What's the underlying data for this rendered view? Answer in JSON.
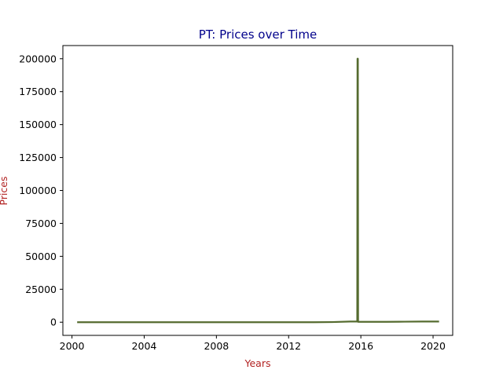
{
  "chart_data": {
    "type": "line",
    "title": "PT: Prices over Time",
    "xlabel": "Years",
    "ylabel": "Prices",
    "title_color": "#00008b",
    "label_color": "#b22222",
    "line_color": "#556b2f",
    "xlim": [
      "1999-07-01",
      "2021-02-01"
    ],
    "ylim": [
      -10000,
      210000
    ],
    "x_ticks": [
      "2000",
      "2004",
      "2008",
      "2012",
      "2016",
      "2020"
    ],
    "y_ticks": [
      "0",
      "25000",
      "50000",
      "75000",
      "100000",
      "125000",
      "150000",
      "175000",
      "200000"
    ],
    "grid": false,
    "series": [
      {
        "x": [
          "2000-04-15",
          "2004-01-01",
          "2008-01-01",
          "2011-06-01",
          "2012-06-01",
          "2013-06-01",
          "2014-06-01",
          "2015-06-01",
          "2015-10-20",
          "2015-10-25",
          "2015-11-02",
          "2015-11-06",
          "2016-06-01",
          "2017-06-01",
          "2018-06-01",
          "2019-06-01",
          "2020-05-01"
        ],
        "y": [
          0,
          0,
          0,
          0,
          0,
          0,
          100,
          500,
          500,
          200000,
          200000,
          300,
          300,
          300,
          400,
          500,
          500
        ]
      }
    ]
  }
}
